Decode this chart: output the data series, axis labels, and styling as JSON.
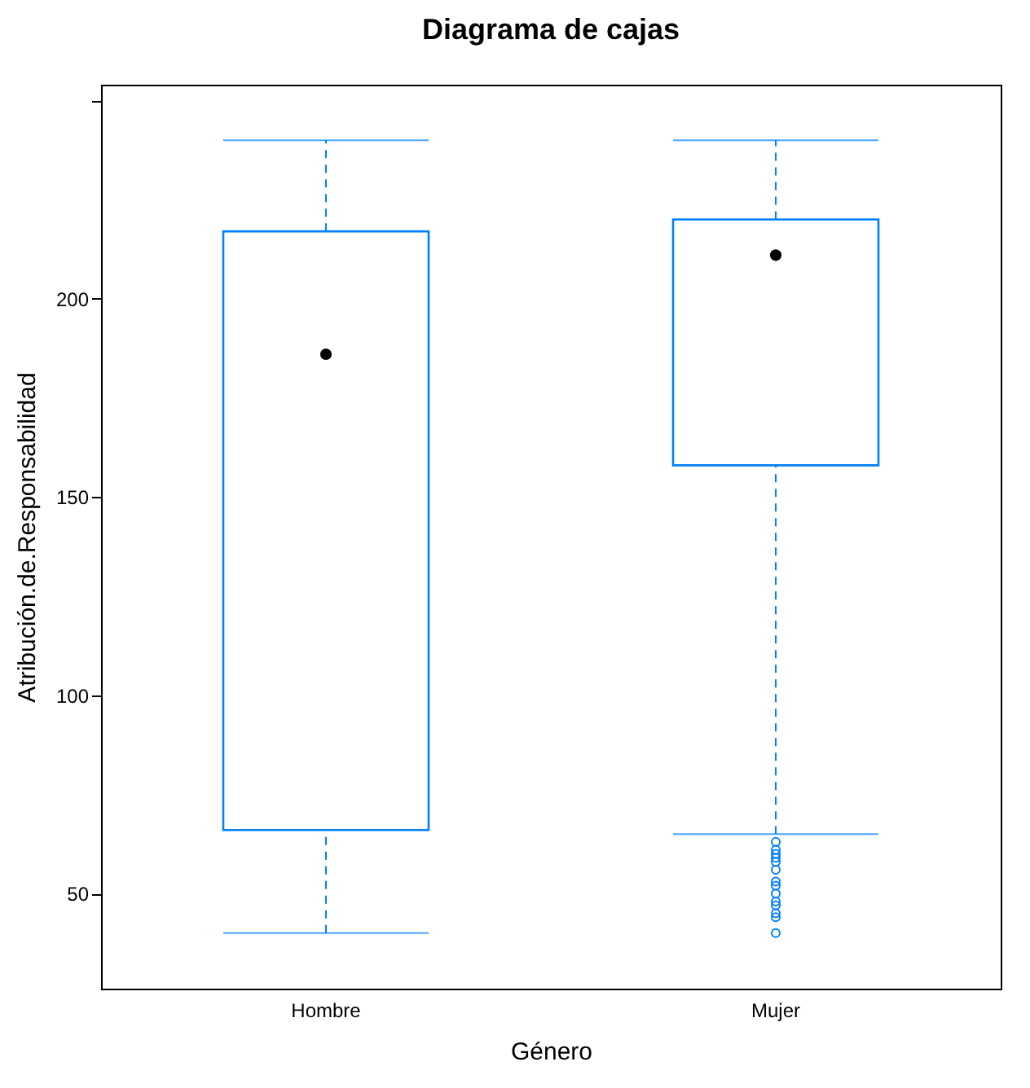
{
  "chart_data": {
    "type": "box",
    "title": "Diagrama de cajas",
    "xlabel": "Género",
    "ylabel": "Atribución.de.Responsabilidad",
    "categories": [
      "Hombre",
      "Mujer"
    ],
    "boxes": [
      {
        "low": 40,
        "q1": 66,
        "median": 186,
        "q3": 217,
        "high": 240
      },
      {
        "low": 65,
        "q1": 158,
        "median": 211,
        "q3": 220,
        "high": 240,
        "outliers": [
          63,
          61,
          60,
          59,
          58,
          56,
          53,
          52,
          50,
          48,
          47,
          45,
          44,
          40
        ]
      }
    ],
    "color": "#0080ff",
    "line_style": "dashed",
    "marker": "circle",
    "grid": false,
    "ylim": [
      26,
      254
    ],
    "yticks": [
      50,
      100,
      150,
      200,
      {
        "value": 250,
        "label": null
      }
    ]
  }
}
